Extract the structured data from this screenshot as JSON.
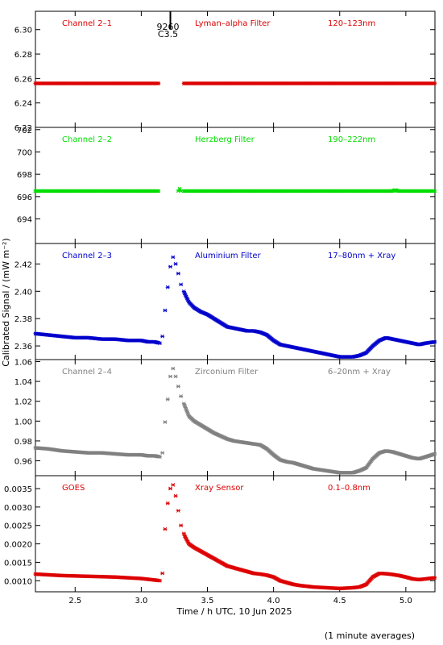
{
  "figure": {
    "ylabel": "Calibrated Signal / (mW m⁻²)",
    "xlabel": "Time / h UTC, 10 Jun 2025",
    "footnote": "(1 minute averages)",
    "flare_marker": {
      "x": 3.22,
      "label_line1": "9260",
      "label_line2": "C3.5"
    }
  },
  "colors": {
    "red": "#dd0000",
    "green": "#00dd00",
    "blue": "#0000cc",
    "gray": "#808080",
    "axis": "#000000"
  },
  "x_axis": {
    "xlim": [
      2.2,
      5.22
    ],
    "ticks": [
      2.5,
      3.0,
      3.5,
      4.0,
      4.5,
      5.0
    ],
    "tick_labels": [
      "2.5",
      "3.0",
      "3.5",
      "4.0",
      "4.5",
      "5.0"
    ]
  },
  "chart_data": [
    {
      "type": "scatter",
      "channel_label": "Channel 2–1",
      "filter_label": "Lyman–alpha Filter",
      "band_label": "120–123nm",
      "color": "red",
      "ylim": [
        6.22,
        6.315
      ],
      "yticks": [
        6.22,
        6.24,
        6.26,
        6.28,
        6.3
      ],
      "ytick_labels": [
        "6.22",
        "6.24",
        "6.26",
        "6.28",
        "6.30"
      ],
      "x": [
        2.2,
        5.22
      ],
      "y": [
        6.256,
        6.256
      ]
    },
    {
      "type": "scatter",
      "channel_label": "Channel 2–2",
      "filter_label": "Herzberg Filter",
      "band_label": "190–222nm",
      "color": "green",
      "ylim": [
        691.8,
        702.2
      ],
      "yticks": [
        694,
        696,
        698,
        700,
        702
      ],
      "ytick_labels": [
        "694",
        "696",
        "698",
        "700",
        "702"
      ],
      "x": [
        2.2,
        3.28,
        3.29,
        3.3,
        4.9,
        4.92,
        4.94,
        5.22
      ],
      "y": [
        696.5,
        696.5,
        696.7,
        696.5,
        696.5,
        696.6,
        696.5,
        696.5
      ]
    },
    {
      "type": "scatter",
      "channel_label": "Channel 2–3",
      "filter_label": "Aluminium Filter",
      "band_label": "17–80nm + Xray",
      "color": "blue",
      "ylim": [
        2.35,
        2.435
      ],
      "yticks": [
        2.36,
        2.38,
        2.4,
        2.42
      ],
      "ytick_labels": [
        "2.36",
        "2.38",
        "2.40",
        "2.42"
      ],
      "x": [
        2.2,
        2.3,
        2.4,
        2.5,
        2.6,
        2.7,
        2.8,
        2.9,
        3.0,
        3.05,
        3.1,
        3.14,
        3.16,
        3.18,
        3.2,
        3.22,
        3.24,
        3.26,
        3.28,
        3.3,
        3.33,
        3.36,
        3.4,
        3.45,
        3.5,
        3.55,
        3.6,
        3.65,
        3.7,
        3.75,
        3.8,
        3.85,
        3.9,
        3.95,
        4.0,
        4.05,
        4.1,
        4.15,
        4.2,
        4.25,
        4.3,
        4.35,
        4.4,
        4.45,
        4.5,
        4.55,
        4.6,
        4.65,
        4.7,
        4.75,
        4.8,
        4.85,
        4.9,
        4.95,
        5.0,
        5.05,
        5.1,
        5.15,
        5.22
      ],
      "y": [
        2.369,
        2.368,
        2.367,
        2.366,
        2.366,
        2.365,
        2.365,
        2.364,
        2.364,
        2.363,
        2.363,
        2.362,
        2.367,
        2.386,
        2.403,
        2.418,
        2.425,
        2.42,
        2.413,
        2.405,
        2.398,
        2.392,
        2.388,
        2.385,
        2.383,
        2.38,
        2.377,
        2.374,
        2.373,
        2.372,
        2.371,
        2.371,
        2.37,
        2.368,
        2.364,
        2.361,
        2.36,
        2.359,
        2.358,
        2.357,
        2.356,
        2.355,
        2.354,
        2.353,
        2.352,
        2.352,
        2.352,
        2.353,
        2.355,
        2.36,
        2.364,
        2.366,
        2.365,
        2.364,
        2.363,
        2.362,
        2.361,
        2.362,
        2.363
      ]
    },
    {
      "type": "scatter",
      "channel_label": "Channel 2–4",
      "filter_label": "Zirconium Filter",
      "band_label": "6–20nm + Xray",
      "color": "gray",
      "ylim": [
        0.945,
        1.062
      ],
      "yticks": [
        0.96,
        0.98,
        1.0,
        1.02,
        1.04,
        1.06
      ],
      "ytick_labels": [
        "0.96",
        "0.98",
        "1.00",
        "1.02",
        "1.04",
        "1.06"
      ],
      "x": [
        2.2,
        2.3,
        2.4,
        2.5,
        2.6,
        2.7,
        2.8,
        2.9,
        3.0,
        3.05,
        3.1,
        3.14,
        3.16,
        3.18,
        3.2,
        3.22,
        3.24,
        3.26,
        3.28,
        3.3,
        3.33,
        3.36,
        3.4,
        3.45,
        3.5,
        3.55,
        3.6,
        3.65,
        3.7,
        3.75,
        3.8,
        3.85,
        3.9,
        3.95,
        4.0,
        4.05,
        4.1,
        4.15,
        4.2,
        4.25,
        4.3,
        4.35,
        4.4,
        4.45,
        4.5,
        4.55,
        4.6,
        4.65,
        4.7,
        4.75,
        4.8,
        4.85,
        4.9,
        4.95,
        5.0,
        5.05,
        5.1,
        5.15,
        5.22
      ],
      "y": [
        0.973,
        0.972,
        0.97,
        0.969,
        0.968,
        0.968,
        0.967,
        0.966,
        0.966,
        0.965,
        0.965,
        0.964,
        0.968,
        0.999,
        1.022,
        1.045,
        1.053,
        1.045,
        1.035,
        1.025,
        1.015,
        1.005,
        1.0,
        0.996,
        0.992,
        0.988,
        0.985,
        0.982,
        0.98,
        0.979,
        0.978,
        0.977,
        0.976,
        0.972,
        0.966,
        0.961,
        0.959,
        0.958,
        0.956,
        0.954,
        0.952,
        0.951,
        0.95,
        0.949,
        0.948,
        0.948,
        0.948,
        0.95,
        0.953,
        0.962,
        0.968,
        0.97,
        0.969,
        0.967,
        0.965,
        0.963,
        0.962,
        0.964,
        0.967
      ]
    },
    {
      "type": "scatter",
      "channel_label": "GOES",
      "filter_label": "Xray Sensor",
      "band_label": "0.1–0.8nm",
      "color": "red",
      "ylim": [
        0.0007,
        0.00385
      ],
      "yticks": [
        0.001,
        0.0015,
        0.002,
        0.0025,
        0.003,
        0.0035
      ],
      "ytick_labels": [
        "0.0010",
        "0.0015",
        "0.0020",
        "0.0025",
        "0.0030",
        "0.0035"
      ],
      "x": [
        2.2,
        2.3,
        2.4,
        2.5,
        2.6,
        2.7,
        2.8,
        2.9,
        3.0,
        3.05,
        3.1,
        3.14,
        3.16,
        3.18,
        3.2,
        3.22,
        3.24,
        3.26,
        3.28,
        3.3,
        3.33,
        3.36,
        3.4,
        3.45,
        3.5,
        3.55,
        3.6,
        3.65,
        3.7,
        3.75,
        3.8,
        3.85,
        3.9,
        3.95,
        4.0,
        4.05,
        4.1,
        4.15,
        4.2,
        4.25,
        4.3,
        4.35,
        4.4,
        4.45,
        4.5,
        4.55,
        4.6,
        4.65,
        4.7,
        4.75,
        4.8,
        4.85,
        4.9,
        4.95,
        5.0,
        5.05,
        5.1,
        5.15,
        5.22
      ],
      "y": [
        0.00118,
        0.00116,
        0.00114,
        0.00113,
        0.00112,
        0.00111,
        0.0011,
        0.00108,
        0.00106,
        0.00104,
        0.00102,
        0.001,
        0.0012,
        0.0024,
        0.0031,
        0.0035,
        0.0036,
        0.0033,
        0.0029,
        0.0025,
        0.0022,
        0.002,
        0.0019,
        0.0018,
        0.0017,
        0.0016,
        0.0015,
        0.0014,
        0.00135,
        0.0013,
        0.00125,
        0.0012,
        0.00118,
        0.00115,
        0.0011,
        0.001,
        0.00095,
        0.0009,
        0.00087,
        0.00085,
        0.00083,
        0.00082,
        0.00081,
        0.0008,
        0.00079,
        0.0008,
        0.00081,
        0.00083,
        0.0009,
        0.0011,
        0.0012,
        0.00119,
        0.00117,
        0.00114,
        0.0011,
        0.00105,
        0.00103,
        0.00105,
        0.00108
      ]
    }
  ]
}
